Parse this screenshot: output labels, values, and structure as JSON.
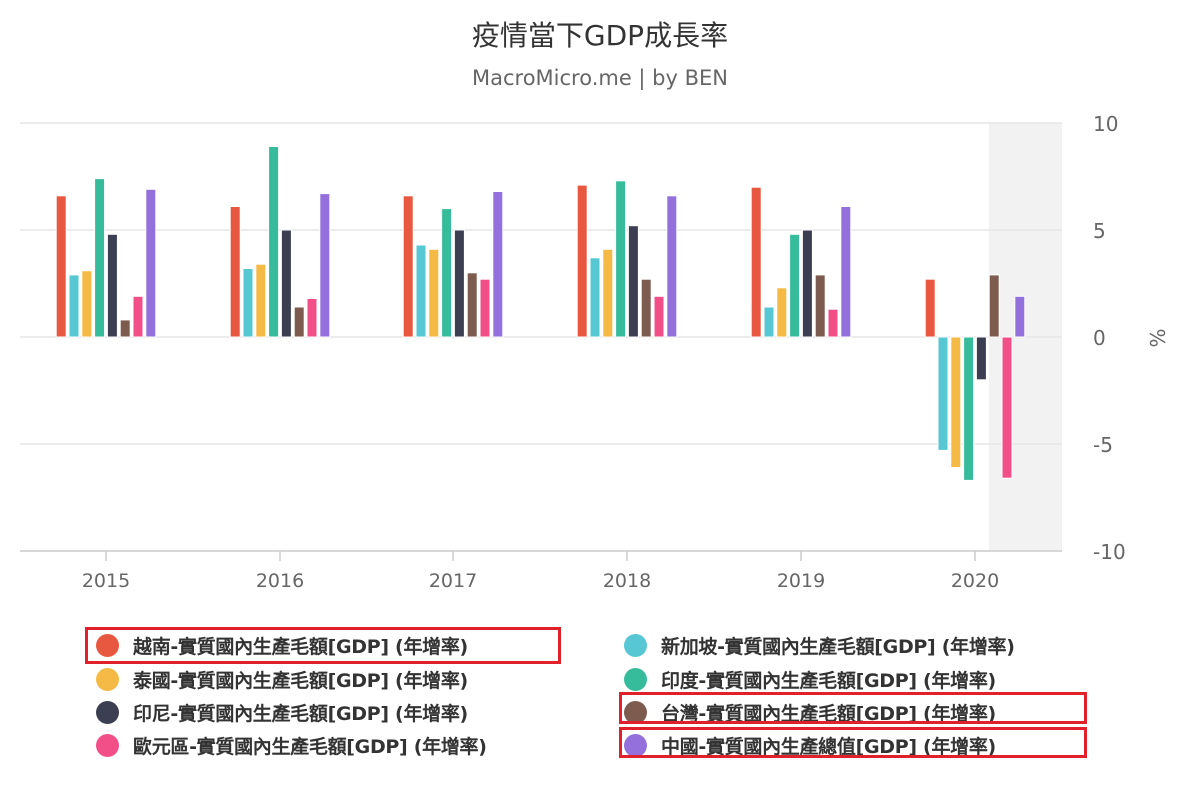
{
  "header": {
    "title": "疫情當下GDP成長率",
    "subtitle": "MacroMicro.me | by BEN"
  },
  "chart_data": {
    "type": "bar",
    "title": "疫情當下GDP成長率",
    "subtitle": "MacroMicro.me | by BEN",
    "xlabel": "",
    "ylabel": "%",
    "ylim": [
      -10,
      10
    ],
    "yticks": [
      10,
      5,
      0,
      -5,
      -10
    ],
    "grid": true,
    "legend_position": "bottom",
    "categories": [
      "2015",
      "2016",
      "2017",
      "2018",
      "2019",
      "2020"
    ],
    "shaded_region": {
      "category": "2020",
      "note": "partial-year band",
      "color": "#f2f2f2"
    },
    "series": [
      {
        "name": "越南-實質國內生產毛額[GDP] (年增率)",
        "color": "#e8573f",
        "values": [
          6.6,
          6.1,
          6.6,
          7.1,
          7.0,
          2.7
        ]
      },
      {
        "name": "新加坡-實質國內生產毛額[GDP] (年增率)",
        "color": "#57c7d4",
        "values": [
          2.9,
          3.2,
          4.3,
          3.7,
          1.4,
          -5.3
        ]
      },
      {
        "name": "泰國-實質國內生產毛額[GDP] (年增率)",
        "color": "#f5b945",
        "values": [
          3.1,
          3.4,
          4.1,
          4.1,
          2.3,
          -6.1
        ]
      },
      {
        "name": "印度-實質國內生產毛額[GDP] (年增率)",
        "color": "#37bc9b",
        "values": [
          7.4,
          8.9,
          6.0,
          7.3,
          4.8,
          -6.7
        ]
      },
      {
        "name": "印尼-實質國內生產毛額[GDP] (年增率)",
        "color": "#3b3f51",
        "values": [
          4.8,
          5.0,
          5.0,
          5.2,
          5.0,
          -2.0
        ]
      },
      {
        "name": "台灣-實質國內生產毛額[GDP] (年增率)",
        "color": "#7d5b4f",
        "values": [
          0.8,
          1.4,
          3.0,
          2.7,
          2.9,
          2.9
        ]
      },
      {
        "name": "歐元區-實質國內生產毛額[GDP] (年增率)",
        "color": "#f24f88",
        "values": [
          1.9,
          1.8,
          2.7,
          1.9,
          1.3,
          -6.6
        ]
      },
      {
        "name": "中國-實質國內生產總值[GDP] (年增率)",
        "color": "#9370db",
        "values": [
          6.9,
          6.7,
          6.8,
          6.6,
          6.1,
          1.9
        ]
      }
    ]
  },
  "legend": {
    "items": [
      {
        "label": "越南-實質國內生產毛額[GDP] (年增率)",
        "color": "#e8573f",
        "highlighted": true
      },
      {
        "label": "新加坡-實質國內生產毛額[GDP] (年增率)",
        "color": "#57c7d4",
        "highlighted": false
      },
      {
        "label": "泰國-實質國內生產毛額[GDP] (年增率)",
        "color": "#f5b945",
        "highlighted": false
      },
      {
        "label": "印度-實質國內生產毛額[GDP] (年增率)",
        "color": "#37bc9b",
        "highlighted": false
      },
      {
        "label": "印尼-實質國內生產毛額[GDP] (年增率)",
        "color": "#3b3f51",
        "highlighted": false
      },
      {
        "label": "台灣-實質國內生產毛額[GDP] (年增率)",
        "color": "#7d5b4f",
        "highlighted": true
      },
      {
        "label": "歐元區-實質國內生產毛額[GDP] (年增率)",
        "color": "#f24f88",
        "highlighted": false
      },
      {
        "label": "中國-實質國內生產總值[GDP] (年增率)",
        "color": "#9370db",
        "highlighted": true
      }
    ]
  },
  "colors": {
    "grid": "#e6e6e6",
    "axis": "#cccccc",
    "tick_label": "#666666",
    "highlight_box": "#e0202a",
    "shade": "#f2f2f2"
  }
}
